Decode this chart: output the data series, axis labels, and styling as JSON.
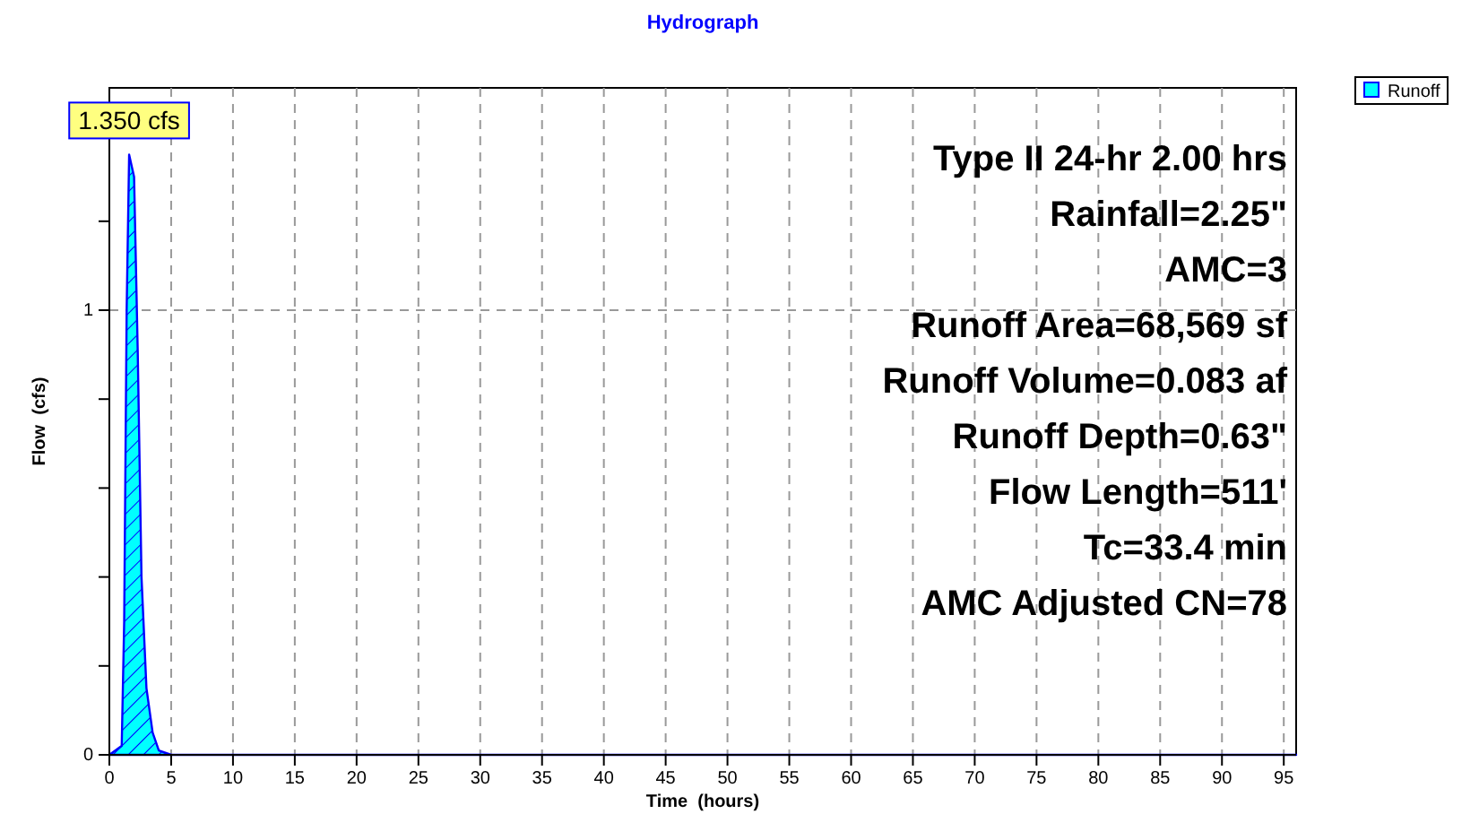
{
  "chart_data": {
    "type": "area",
    "title": "Hydrograph",
    "xlabel": "Time  (hours)",
    "ylabel": "Flow  (cfs)",
    "xlim": [
      0,
      96
    ],
    "ylim": [
      0,
      1.5
    ],
    "xticks": [
      0,
      5,
      10,
      15,
      20,
      25,
      30,
      35,
      40,
      45,
      50,
      55,
      60,
      65,
      70,
      75,
      80,
      85,
      90,
      95
    ],
    "yticks": [
      0,
      {
        "value": 0.2,
        "label": null
      },
      {
        "value": 0.4,
        "label": null
      },
      {
        "value": 0.6,
        "label": null
      },
      {
        "value": 0.8,
        "label": null
      },
      1,
      {
        "value": 1.2,
        "label": null
      }
    ],
    "grid": true,
    "legend": "top right",
    "series": [
      {
        "name": "Runoff",
        "color": "#00ffff",
        "x": [
          0,
          1.0,
          1.2,
          1.4,
          1.6,
          2.0,
          2.3,
          2.6,
          3.0,
          3.5,
          4.0,
          5.0,
          96
        ],
        "values": [
          0,
          0.02,
          0.3,
          1.0,
          1.35,
          1.3,
          0.9,
          0.4,
          0.15,
          0.05,
          0.01,
          0,
          0
        ]
      }
    ],
    "annotations": [
      {
        "text": "1.350 cfs",
        "x": 1.6,
        "y": 1.35
      },
      "Type II 24-hr 2.00 hrs",
      "Rainfall=2.25\"",
      "AMC=3",
      "Runoff Area=68,569 sf",
      "Runoff Volume=0.083 af",
      "Runoff Depth=0.63\"",
      "Flow Length=511'",
      "Tc=33.4 min",
      "AMC Adjusted CN=78"
    ]
  }
}
